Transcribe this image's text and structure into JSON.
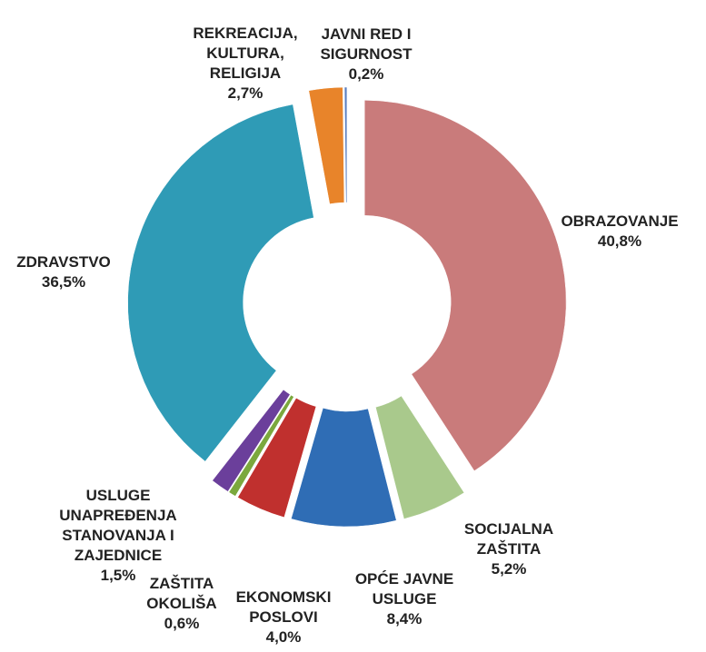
{
  "chart_data": {
    "type": "doughnut",
    "categories": [
      "OBRAZOVANJE",
      "SOCIJALNA ZAŠTITA",
      "OPĆE JAVNE USLUGE",
      "EKONOMSKI POSLOVI",
      "ZAŠTITA OKOLIŠA",
      "USLUGE UNAPREĐENJA STANOVANJA I ZAJEDNICE",
      "ZDRAVSTVO",
      "REKREACIJA, KULTURA, RELIGIJA",
      "JAVNI RED I SIGURNOST"
    ],
    "values": [
      40.8,
      5.2,
      8.4,
      4.0,
      0.6,
      1.5,
      36.5,
      2.7,
      0.2
    ],
    "value_labels": [
      "40,8%",
      "5,2%",
      "8,4%",
      "4,0%",
      "0,6%",
      "1,5%",
      "36,5%",
      "2,7%",
      "0,2%"
    ],
    "colors": [
      "#c97b7b",
      "#a9c98c",
      "#2f6db5",
      "#c0302e",
      "#7ba83d",
      "#6b3f9b",
      "#2f9bb6",
      "#e8842a",
      "#5b7fc0"
    ],
    "exploded": true
  }
}
